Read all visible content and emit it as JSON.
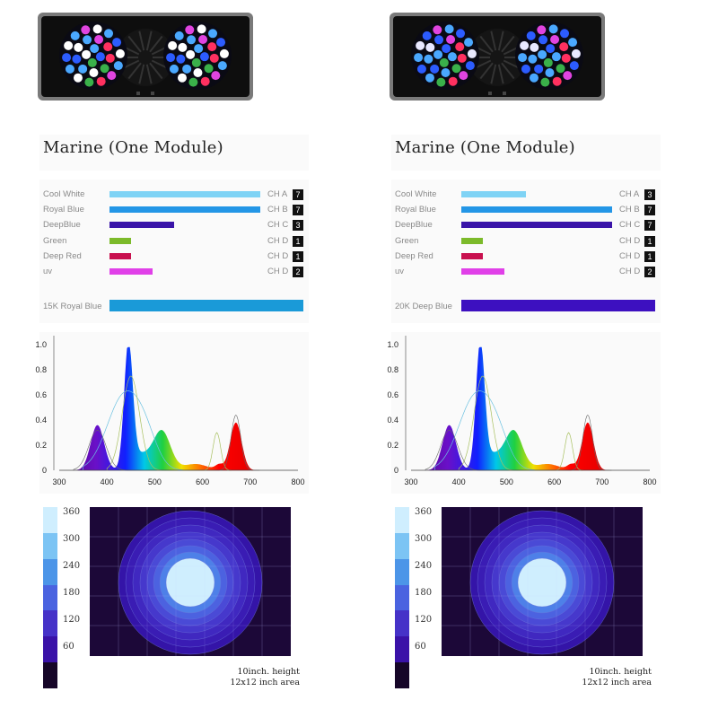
{
  "panels": [
    {
      "title": "Marine (One Module)",
      "channels": [
        {
          "label": "Cool White",
          "color": "#7fd3f5",
          "value": 7,
          "channel": "CH A",
          "level": "7"
        },
        {
          "label": "Royal Blue",
          "color": "#2496e6",
          "value": 7,
          "channel": "CH B",
          "level": "7"
        },
        {
          "label": "DeepBlue",
          "color": "#3a14a8",
          "value": 3,
          "channel": "CH C",
          "level": "3"
        },
        {
          "label": "Green",
          "color": "#7cba2a",
          "value": 1,
          "channel": "CH D",
          "level": "1"
        },
        {
          "label": "Deep Red",
          "color": "#c8104e",
          "value": 1,
          "channel": "CH D",
          "level": "1"
        },
        {
          "label": "uv",
          "color": "#e040e8",
          "value": 2,
          "channel": "CH D",
          "level": "2"
        }
      ],
      "color_temp": {
        "label": "15K Royal Blue",
        "color": "#1a9ad8"
      },
      "heat_note": [
        "10inch. height",
        "12x12 inch area"
      ]
    },
    {
      "title": "Marine (One Module)",
      "channels": [
        {
          "label": "Cool White",
          "color": "#7fd3f5",
          "value": 3,
          "channel": "CH A",
          "level": "3"
        },
        {
          "label": "Royal Blue",
          "color": "#2496e6",
          "value": 7,
          "channel": "CH B",
          "level": "7"
        },
        {
          "label": "DeepBlue",
          "color": "#3a14a8",
          "value": 7,
          "channel": "CH C",
          "level": "7"
        },
        {
          "label": "Green",
          "color": "#7cba2a",
          "value": 1,
          "channel": "CH D",
          "level": "1"
        },
        {
          "label": "Deep Red",
          "color": "#c8104e",
          "value": 1,
          "channel": "CH D",
          "level": "1"
        },
        {
          "label": "uv",
          "color": "#e040e8",
          "value": 2,
          "channel": "CH D",
          "level": "2"
        }
      ],
      "color_temp": {
        "label": "20K Deep Blue",
        "color": "#3d10c0"
      },
      "heat_note": [
        "10inch. height",
        "12x12 inch area"
      ]
    }
  ],
  "chart_data": [
    {
      "type": "area",
      "xlim": [
        300,
        800
      ],
      "ylim": [
        0,
        1.0
      ],
      "x_ticks": [
        "300",
        "400",
        "500",
        "600",
        "700",
        "800"
      ],
      "y_ticks": [
        "0",
        "0.2",
        "0.4",
        "0.6",
        "0.8",
        "1.0"
      ],
      "peaks": [
        {
          "x": 380,
          "y": 0.36
        },
        {
          "x": 445,
          "y": 0.98
        },
        {
          "x": 515,
          "y": 0.31
        },
        {
          "x": 635,
          "y": 0.04
        },
        {
          "x": 670,
          "y": 0.38
        }
      ]
    },
    {
      "type": "heatmap",
      "scale": [
        "360",
        "300",
        "240",
        "180",
        "120",
        "60"
      ],
      "scale_colors": [
        "#cfeefe",
        "#7cc4f4",
        "#4c95e8",
        "#4a63e0",
        "#4632c8",
        "#3a12a8",
        "#160628"
      ]
    }
  ]
}
